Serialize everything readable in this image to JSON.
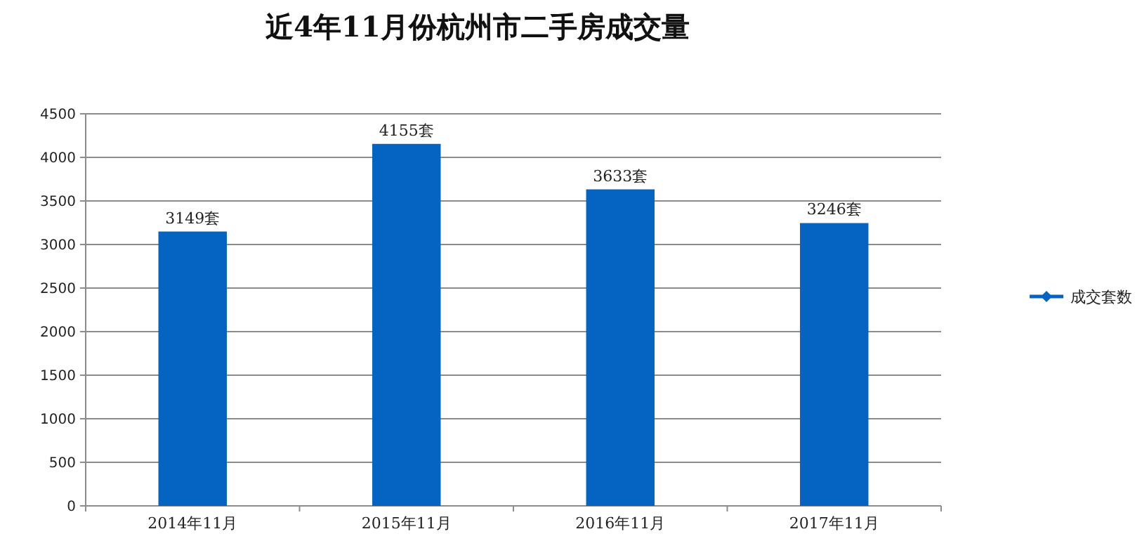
{
  "chart_data": {
    "type": "bar",
    "title": "近4年11月份杭州市二手房成交量",
    "categories": [
      "2014年11月",
      "2015年11月",
      "2016年11月",
      "2017年11月"
    ],
    "series": [
      {
        "name": "成交套数",
        "color": "#0563c1",
        "values": [
          3149,
          4155,
          3633,
          3246
        ],
        "value_labels": [
          "3149套",
          "4155套",
          "3633套",
          "3246套"
        ]
      }
    ],
    "ylim": [
      0,
      4500
    ],
    "yticks": [
      0,
      500,
      1000,
      1500,
      2000,
      2500,
      3000,
      3500,
      4000,
      4500
    ],
    "grid": "y",
    "legend": "right"
  }
}
